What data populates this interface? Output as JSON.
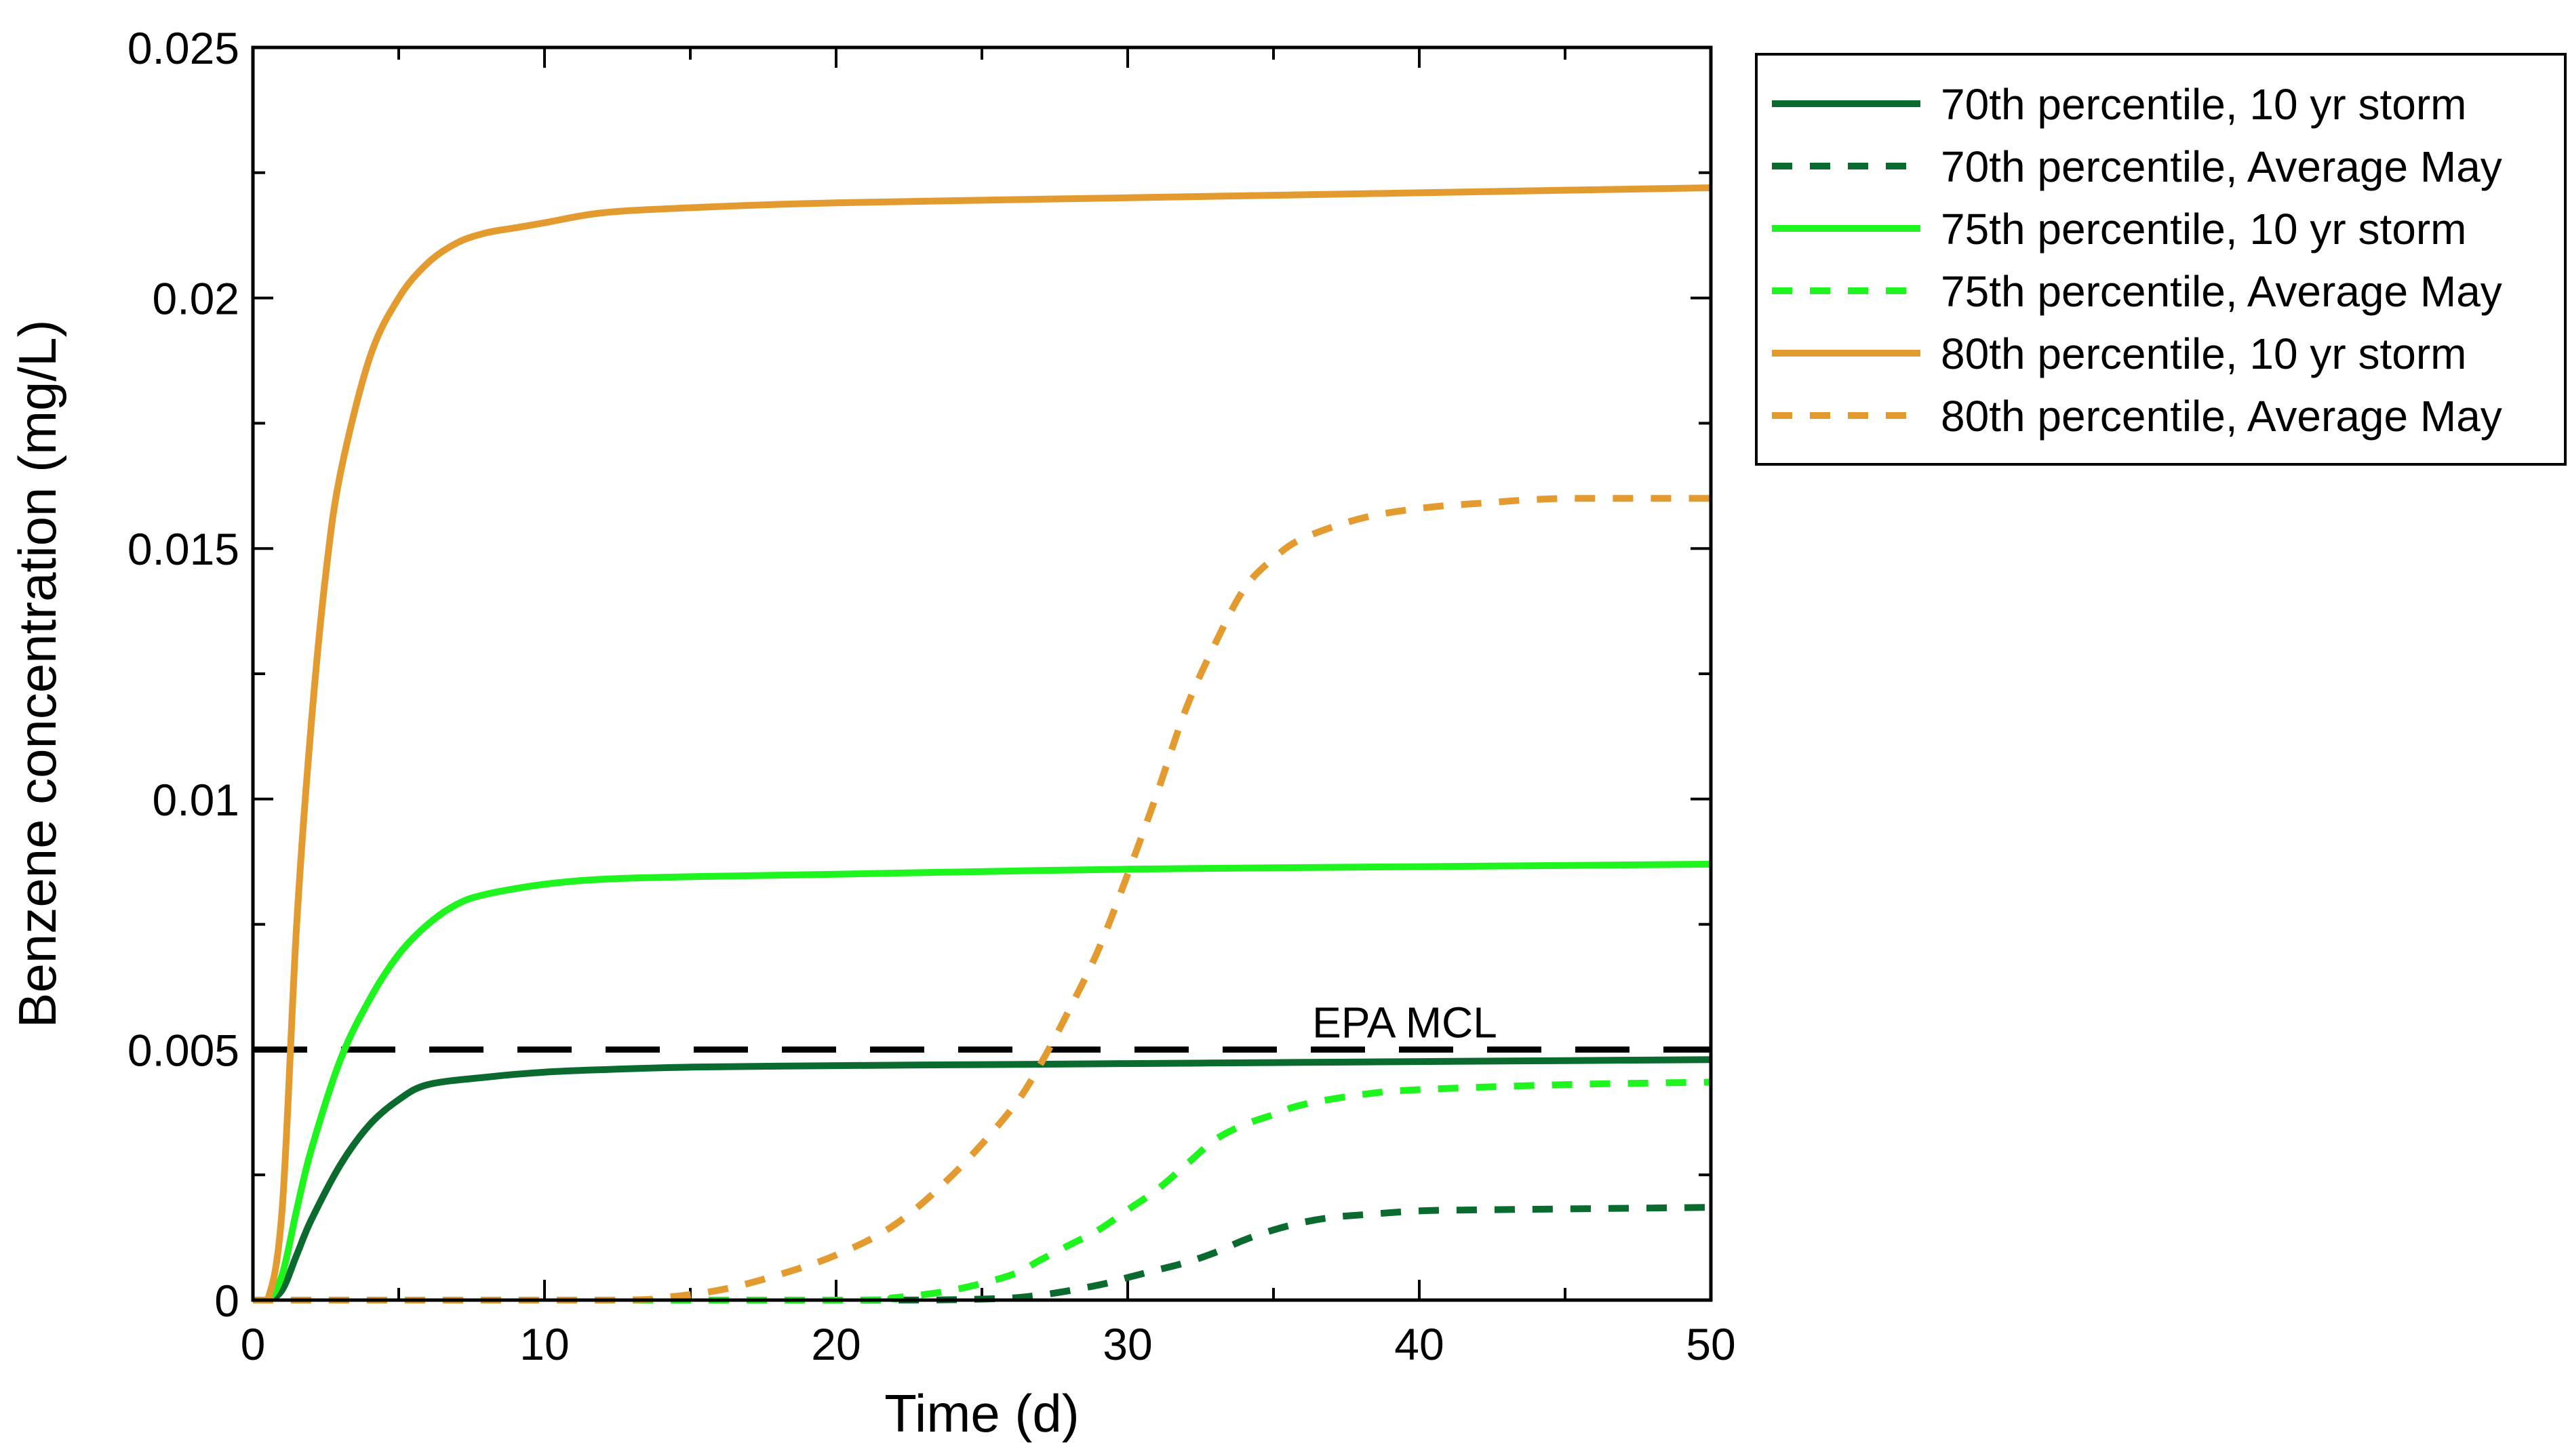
{
  "chart_data": {
    "type": "line",
    "title": "",
    "xlabel": "Time (d)",
    "ylabel": "Benzene concentration (mg/L)",
    "xlim": [
      0,
      50
    ],
    "ylim": [
      0,
      0.025
    ],
    "xticks": [
      0,
      10,
      20,
      30,
      40,
      50
    ],
    "xtick_labels": [
      "0",
      "10",
      "20",
      "30",
      "40",
      "50"
    ],
    "yticks": [
      0,
      0.005,
      0.01,
      0.015,
      0.02,
      0.025
    ],
    "ytick_labels": [
      "0",
      "0.005",
      "0.01",
      "0.015",
      "0.02",
      "0.025"
    ],
    "grid": false,
    "legend_position": "outside-top-right",
    "series": [
      {
        "name": "70th percentile, 10 yr storm",
        "color": "#0b6b2e",
        "dash": "solid",
        "x": [
          0,
          0.5,
          1,
          1.5,
          2,
          3,
          4,
          5,
          6,
          8,
          10,
          12,
          15,
          20,
          25,
          30,
          35,
          40,
          45,
          50
        ],
        "y": [
          0,
          0,
          0.0002,
          0.0009,
          0.0016,
          0.0027,
          0.0035,
          0.004,
          0.0043,
          0.00445,
          0.00455,
          0.0046,
          0.00465,
          0.00468,
          0.0047,
          0.00472,
          0.00474,
          0.00476,
          0.00478,
          0.0048
        ]
      },
      {
        "name": "70th percentile, Average May",
        "color": "#0b6b2e",
        "dash": "dashed",
        "x": [
          0,
          20,
          25,
          27,
          29,
          30,
          31,
          32,
          33,
          34,
          35,
          36,
          37,
          38,
          40,
          42,
          45,
          50
        ],
        "y": [
          0,
          0,
          2e-05,
          0.0001,
          0.0003,
          0.00045,
          0.0006,
          0.00075,
          0.00095,
          0.0012,
          0.0014,
          0.00155,
          0.00165,
          0.0017,
          0.00178,
          0.0018,
          0.00182,
          0.00185
        ]
      },
      {
        "name": "75th percentile, 10 yr storm",
        "color": "#1ef51e",
        "dash": "solid",
        "x": [
          0,
          0.5,
          1,
          1.5,
          2,
          3,
          4,
          5,
          6,
          7,
          8,
          10,
          12,
          15,
          20,
          30,
          40,
          50
        ],
        "y": [
          0,
          0,
          0.0005,
          0.0018,
          0.003,
          0.0048,
          0.006,
          0.0069,
          0.0075,
          0.0079,
          0.0081,
          0.0083,
          0.0084,
          0.00845,
          0.0085,
          0.0086,
          0.00865,
          0.0087
        ]
      },
      {
        "name": "75th percentile, Average May",
        "color": "#1ef51e",
        "dash": "dashed",
        "x": [
          0,
          20,
          22,
          24,
          26,
          27,
          28,
          29,
          30,
          31,
          32,
          33,
          34,
          35,
          36,
          38,
          40,
          45,
          50
        ],
        "y": [
          0,
          0,
          5e-05,
          0.0002,
          0.0005,
          0.0008,
          0.0011,
          0.0014,
          0.0018,
          0.0022,
          0.0027,
          0.0032,
          0.0035,
          0.0037,
          0.0039,
          0.0041,
          0.0042,
          0.0043,
          0.00435
        ]
      },
      {
        "name": "80th percentile, 10 yr storm",
        "color": "#e39b30",
        "dash": "solid",
        "x": [
          0,
          0.5,
          1,
          1.5,
          2,
          2.5,
          3,
          4,
          5,
          6,
          7,
          8,
          9,
          10,
          12,
          15,
          20,
          30,
          40,
          50
        ],
        "y": [
          0,
          0,
          0.0018,
          0.0075,
          0.0115,
          0.0145,
          0.0165,
          0.0188,
          0.02,
          0.0207,
          0.0211,
          0.0213,
          0.0214,
          0.0215,
          0.0217,
          0.0218,
          0.0219,
          0.022,
          0.0221,
          0.0222
        ]
      },
      {
        "name": "80th percentile, Average May",
        "color": "#e39b30",
        "dash": "dashed",
        "x": [
          0,
          12,
          14,
          16,
          18,
          20,
          22,
          24,
          26,
          27,
          28,
          29,
          30,
          31,
          32,
          33,
          34,
          35,
          36,
          38,
          40,
          42,
          45,
          50
        ],
        "y": [
          0,
          0,
          5e-05,
          0.0002,
          0.0005,
          0.0009,
          0.0015,
          0.0025,
          0.0038,
          0.0047,
          0.0058,
          0.007,
          0.0085,
          0.0101,
          0.0118,
          0.0131,
          0.0142,
          0.0148,
          0.0152,
          0.0156,
          0.0158,
          0.0159,
          0.016,
          0.016
        ]
      }
    ],
    "reference_lines": [
      {
        "label": "EPA MCL",
        "y": 0.005,
        "color": "#000000",
        "dash": "long-dash"
      }
    ]
  }
}
